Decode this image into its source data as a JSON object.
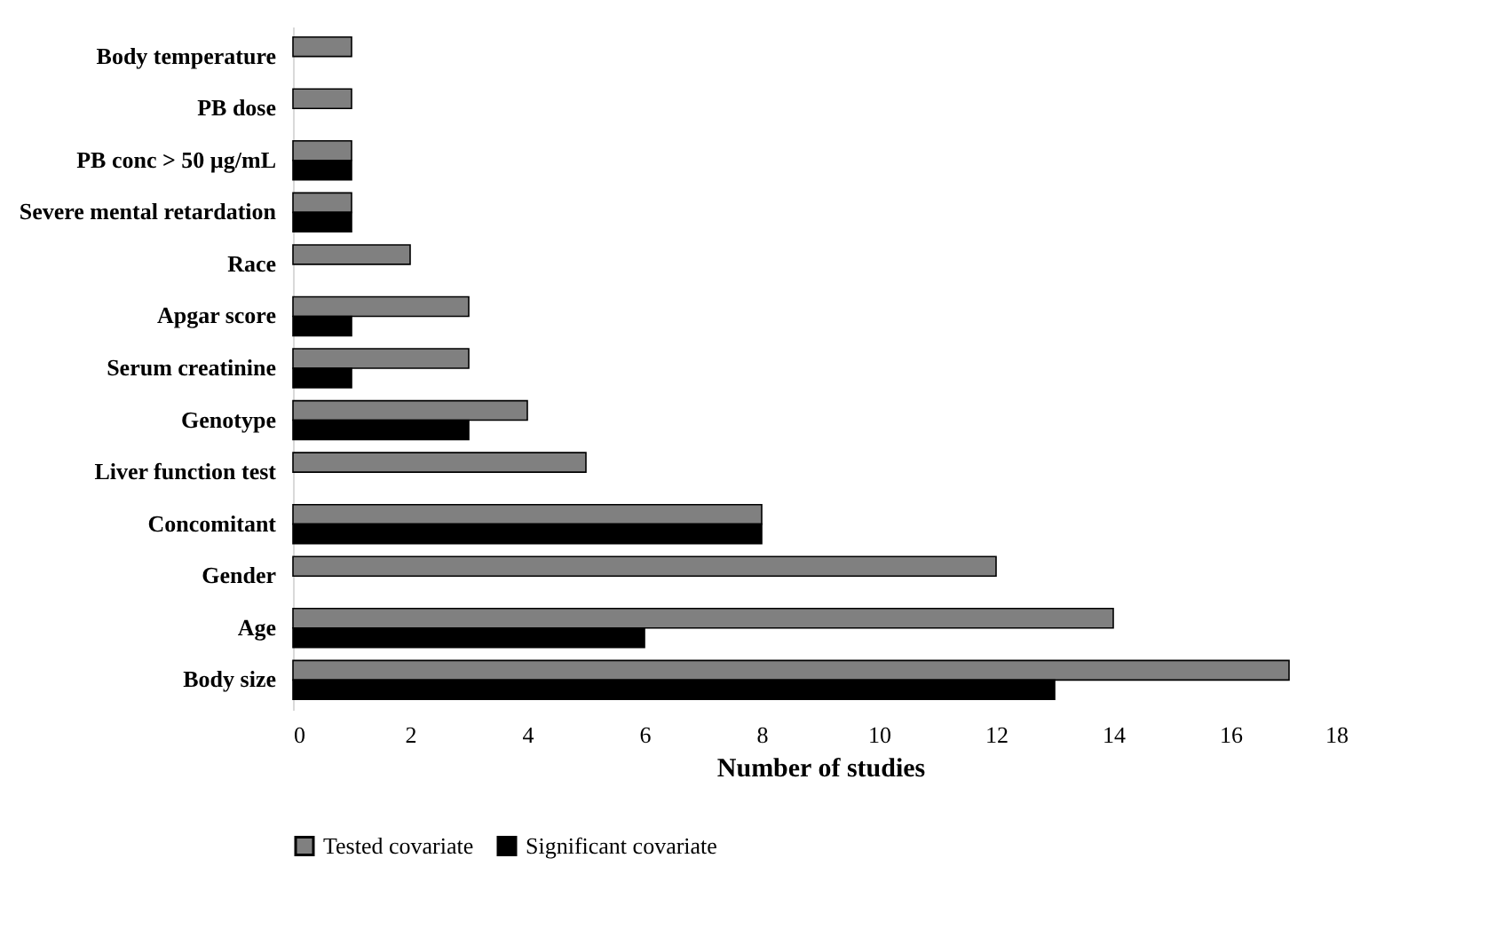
{
  "chart_data": {
    "type": "bar",
    "orientation": "horizontal",
    "xlabel": "Number of studies",
    "categories": [
      "Body temperature",
      "PB dose",
      "PB conc > 50 µg/mL",
      "Severe mental retardation",
      "Race",
      "Apgar score",
      "Serum creatinine",
      "Genotype",
      "Liver function test",
      "Concomitant",
      "Gender",
      "Age",
      "Body size"
    ],
    "series": [
      {
        "name": "Tested covariate",
        "color": "#808080",
        "values": [
          1,
          1,
          1,
          1,
          2,
          3,
          3,
          4,
          5,
          8,
          12,
          14,
          17
        ]
      },
      {
        "name": "Significant covariate",
        "color": "#000000",
        "values": [
          null,
          null,
          1,
          1,
          null,
          1,
          1,
          3,
          null,
          8,
          null,
          6,
          13
        ]
      }
    ],
    "xlim": [
      0,
      18
    ],
    "xticks": [
      0,
      2,
      4,
      6,
      8,
      10,
      12,
      14,
      16,
      18
    ],
    "grid": false,
    "legend": "bottom"
  }
}
